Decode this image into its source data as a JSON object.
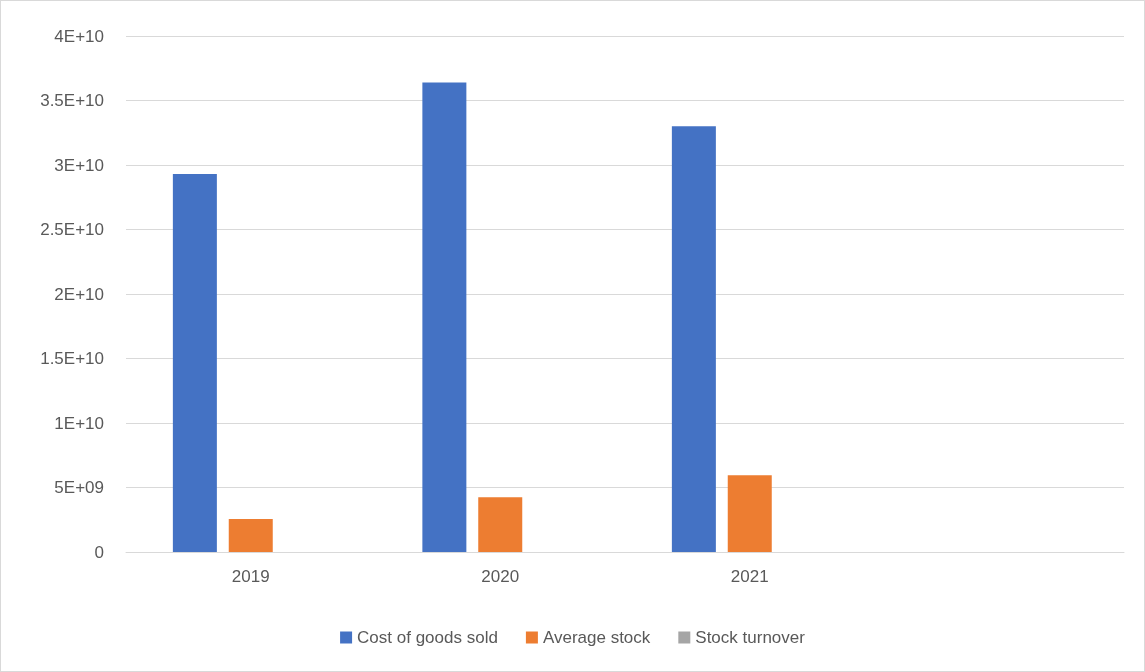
{
  "chart_data": {
    "type": "bar",
    "categories": [
      "2019",
      "2020",
      "2021",
      null
    ],
    "series": [
      {
        "name": "Cost of goods sold",
        "color": "#4472c4",
        "values": [
          29300000000.0,
          36400000000.0,
          33000000000.0,
          null
        ]
      },
      {
        "name": "Average stock",
        "color": "#ed7d31",
        "values": [
          2550000000.0,
          4250000000.0,
          5950000000.0,
          null
        ]
      },
      {
        "name": "Stock turnover",
        "color": "#a5a5a5",
        "values": [
          0,
          0,
          0,
          null
        ]
      }
    ],
    "ylim": [
      0,
      40000000000.0
    ],
    "yticks": [
      {
        "value": 0,
        "label": "0"
      },
      {
        "value": 5000000000.0,
        "label": "5E+09"
      },
      {
        "value": 10000000000.0,
        "label": "1E+10"
      },
      {
        "value": 15000000000.0,
        "label": "1.5E+10"
      },
      {
        "value": 20000000000.0,
        "label": "2E+10"
      },
      {
        "value": 25000000000.0,
        "label": "2.5E+10"
      },
      {
        "value": 30000000000.0,
        "label": "3E+10"
      },
      {
        "value": 35000000000.0,
        "label": "3.5E+10"
      },
      {
        "value": 40000000000.0,
        "label": "4E+10"
      }
    ],
    "grid": "y",
    "legend": "bottom"
  }
}
